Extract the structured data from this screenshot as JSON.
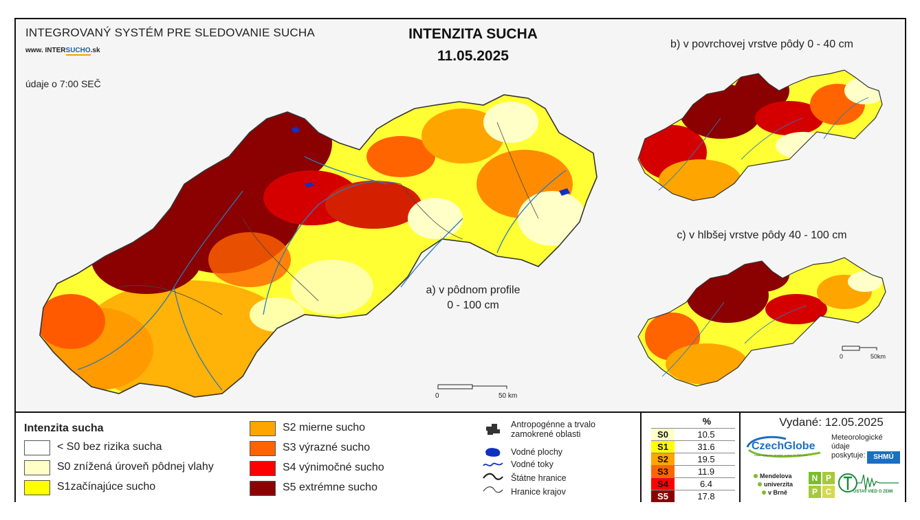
{
  "header": {
    "system_title": "INTEGROVANÝ SYSTÉM PRE SLEDOVANIE SUCHA",
    "site_prefix": "www. INTER",
    "site_accent": "SUCHO",
    "site_suffix": ".sk",
    "time_note": "údaje o 7:00 SEČ",
    "main_title": "INTENZITA SUCHA",
    "date": "11.05.2025"
  },
  "maps": {
    "a_label_line1": "a) v pôdnom profile",
    "a_label_line2": "0 - 100 cm",
    "b_label": "b) v povrchovej vrstve pôdy 0 - 40 cm",
    "c_label": "c) v hlbšej vrstve pôdy 40 - 100 cm",
    "scale_zero": "0",
    "scale_main": "50 km",
    "scale_small": "50km"
  },
  "legend": {
    "title": "Intenzita sucha",
    "classes": [
      {
        "label": "< S0 bez rizika sucha",
        "color": "#ffffff"
      },
      {
        "label": "S0 znížená úroveň pôdnej vlahy",
        "color": "#ffffc8"
      },
      {
        "label": "S1začínajúce sucho",
        "color": "#ffff00"
      },
      {
        "label": "S2 mierne sucho",
        "color": "#ffa500"
      },
      {
        "label": "S3 výrazné sucho",
        "color": "#ff6400"
      },
      {
        "label": "S4 výnimočné sucho",
        "color": "#ff0000"
      },
      {
        "label": "S5 extrémne sucho",
        "color": "#8b0000"
      }
    ],
    "symbols": {
      "anthropogenic": [
        "Antropogénne a trvalo",
        "zamokrené oblasti"
      ],
      "water_bodies": "Vodné plochy",
      "water_streams": "Vodné toky",
      "state_border": "Štátne hranice",
      "region_border": "Hranice krajov"
    }
  },
  "percent_table": {
    "header": "%",
    "rows": [
      {
        "code": "S0",
        "value": "10.5",
        "color": "#ffffc8"
      },
      {
        "code": "S1",
        "value": "31.6",
        "color": "#ffff00"
      },
      {
        "code": "S2",
        "value": "19.5",
        "color": "#ffa500"
      },
      {
        "code": "S3",
        "value": "11.9",
        "color": "#ff6400"
      },
      {
        "code": "S4",
        "value": "6.4",
        "color": "#ff0000"
      },
      {
        "code": "S5",
        "value": "17.8",
        "color": "#8b0000"
      }
    ]
  },
  "footer": {
    "issued": "Vydané: 12.05.2025",
    "czechglobe": "CzechGlobe",
    "czechglobe_sub": "Ústav výzkumu globální změny AV ČR, v.v.i.",
    "meteo_note": [
      "Meteorologické",
      "údaje",
      "poskytuje:"
    ],
    "shmu": "SHMÚ",
    "mendel": [
      "Mendelova",
      "univerzita",
      "v Brně"
    ],
    "npc": [
      "N",
      "P",
      "P",
      "C"
    ],
    "uvoz": "ÚSTAV VIED O ZEMI"
  },
  "colors": {
    "s5": "#8b0000",
    "s4": "#d40000",
    "s3": "#ff6400",
    "s2": "#ffa500",
    "s1": "#ffff00",
    "s0": "#ffffc8",
    "river": "#2a7ab8"
  }
}
